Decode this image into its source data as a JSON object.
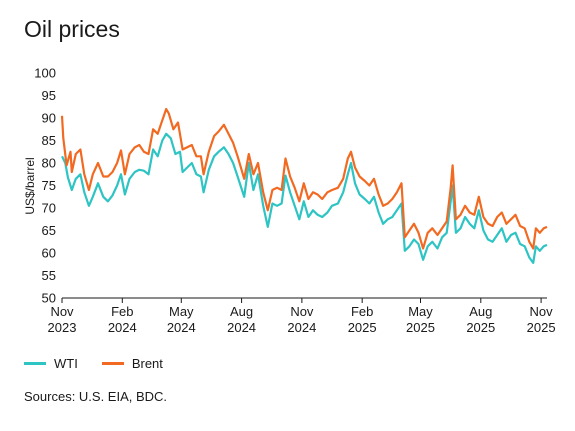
{
  "title": "Oil prices",
  "source": "Sources: U.S. EIA, BDC.",
  "chart_data": {
    "type": "line",
    "ylabel": "US$/barrel",
    "ylim": [
      50,
      100
    ],
    "yticks": [
      50,
      55,
      60,
      65,
      70,
      75,
      80,
      85,
      90,
      95,
      100
    ],
    "xlim": [
      "2023-11-01",
      "2025-11-10"
    ],
    "xticks": [
      {
        "date": "2023-11-01",
        "month": "Nov",
        "year": "2023"
      },
      {
        "date": "2024-02-01",
        "month": "Feb",
        "year": "2024"
      },
      {
        "date": "2024-05-01",
        "month": "May",
        "year": "2024"
      },
      {
        "date": "2024-08-01",
        "month": "Aug",
        "year": "2024"
      },
      {
        "date": "2024-11-01",
        "month": "Nov",
        "year": "2024"
      },
      {
        "date": "2025-02-01",
        "month": "Feb",
        "year": "2025"
      },
      {
        "date": "2025-05-01",
        "month": "May",
        "year": "2025"
      },
      {
        "date": "2025-08-01",
        "month": "Aug",
        "year": "2025"
      },
      {
        "date": "2025-11-01",
        "month": "Nov",
        "year": "2025"
      }
    ],
    "series": [
      {
        "name": "WTI",
        "color": "#2ec4c4",
        "points": [
          [
            "2023-11-01",
            81.5
          ],
          [
            "2023-11-06",
            80.0
          ],
          [
            "2023-11-10",
            76.8
          ],
          [
            "2023-11-16",
            74.0
          ],
          [
            "2023-11-22",
            76.5
          ],
          [
            "2023-11-29",
            77.5
          ],
          [
            "2023-12-05",
            73.5
          ],
          [
            "2023-12-12",
            70.5
          ],
          [
            "2023-12-18",
            72.5
          ],
          [
            "2023-12-26",
            75.5
          ],
          [
            "2024-01-03",
            72.5
          ],
          [
            "2024-01-10",
            71.5
          ],
          [
            "2024-01-17",
            72.8
          ],
          [
            "2024-01-24",
            75.0
          ],
          [
            "2024-01-30",
            77.5
          ],
          [
            "2024-02-05",
            73.0
          ],
          [
            "2024-02-12",
            76.5
          ],
          [
            "2024-02-20",
            78.0
          ],
          [
            "2024-02-27",
            78.5
          ],
          [
            "2024-03-05",
            78.3
          ],
          [
            "2024-03-12",
            77.5
          ],
          [
            "2024-03-19",
            83.0
          ],
          [
            "2024-03-26",
            81.5
          ],
          [
            "2024-04-02",
            85.0
          ],
          [
            "2024-04-08",
            86.5
          ],
          [
            "2024-04-15",
            85.5
          ],
          [
            "2024-04-22",
            82.0
          ],
          [
            "2024-04-29",
            82.5
          ],
          [
            "2024-05-03",
            78.0
          ],
          [
            "2024-05-10",
            79.0
          ],
          [
            "2024-05-17",
            80.0
          ],
          [
            "2024-05-24",
            77.5
          ],
          [
            "2024-05-31",
            77.0
          ],
          [
            "2024-06-04",
            73.5
          ],
          [
            "2024-06-12",
            78.5
          ],
          [
            "2024-06-20",
            81.5
          ],
          [
            "2024-06-27",
            82.5
          ],
          [
            "2024-07-05",
            83.5
          ],
          [
            "2024-07-12",
            82.0
          ],
          [
            "2024-07-19",
            80.0
          ],
          [
            "2024-07-26",
            77.0
          ],
          [
            "2024-08-05",
            72.5
          ],
          [
            "2024-08-12",
            80.0
          ],
          [
            "2024-08-19",
            74.0
          ],
          [
            "2024-08-26",
            77.5
          ],
          [
            "2024-09-03",
            70.5
          ],
          [
            "2024-09-10",
            65.8
          ],
          [
            "2024-09-17",
            71.0
          ],
          [
            "2024-09-24",
            70.5
          ],
          [
            "2024-10-01",
            71.0
          ],
          [
            "2024-10-07",
            77.2
          ],
          [
            "2024-10-14",
            73.5
          ],
          [
            "2024-10-21",
            70.5
          ],
          [
            "2024-10-28",
            67.5
          ],
          [
            "2024-11-04",
            71.5
          ],
          [
            "2024-11-11",
            68.0
          ],
          [
            "2024-11-18",
            69.5
          ],
          [
            "2024-11-25",
            68.5
          ],
          [
            "2024-12-02",
            68.0
          ],
          [
            "2024-12-10",
            69.0
          ],
          [
            "2024-12-17",
            70.5
          ],
          [
            "2024-12-26",
            71.0
          ],
          [
            "2025-01-03",
            73.5
          ],
          [
            "2025-01-10",
            77.5
          ],
          [
            "2025-01-15",
            80.0
          ],
          [
            "2025-01-21",
            75.5
          ],
          [
            "2025-01-28",
            73.0
          ],
          [
            "2025-02-05",
            72.0
          ],
          [
            "2025-02-12",
            71.0
          ],
          [
            "2025-02-19",
            72.5
          ],
          [
            "2025-02-26",
            69.0
          ],
          [
            "2025-03-05",
            66.5
          ],
          [
            "2025-03-12",
            67.5
          ],
          [
            "2025-03-19",
            68.0
          ],
          [
            "2025-03-26",
            69.5
          ],
          [
            "2025-04-02",
            71.0
          ],
          [
            "2025-04-07",
            60.5
          ],
          [
            "2025-04-14",
            61.5
          ],
          [
            "2025-04-21",
            63.0
          ],
          [
            "2025-04-28",
            62.0
          ],
          [
            "2025-05-05",
            58.5
          ],
          [
            "2025-05-12",
            61.5
          ],
          [
            "2025-05-19",
            62.5
          ],
          [
            "2025-05-27",
            61.0
          ],
          [
            "2025-06-03",
            63.5
          ],
          [
            "2025-06-10",
            64.5
          ],
          [
            "2025-06-16",
            71.5
          ],
          [
            "2025-06-19",
            75.0
          ],
          [
            "2025-06-24",
            64.5
          ],
          [
            "2025-07-01",
            65.5
          ],
          [
            "2025-07-08",
            68.0
          ],
          [
            "2025-07-15",
            66.5
          ],
          [
            "2025-07-22",
            65.5
          ],
          [
            "2025-07-29",
            69.5
          ],
          [
            "2025-08-05",
            65.0
          ],
          [
            "2025-08-12",
            63.0
          ],
          [
            "2025-08-19",
            62.5
          ],
          [
            "2025-08-26",
            64.0
          ],
          [
            "2025-09-02",
            65.5
          ],
          [
            "2025-09-09",
            62.5
          ],
          [
            "2025-09-16",
            64.0
          ],
          [
            "2025-09-23",
            64.5
          ],
          [
            "2025-09-30",
            62.0
          ],
          [
            "2025-10-07",
            61.5
          ],
          [
            "2025-10-14",
            59.0
          ],
          [
            "2025-10-20",
            57.8
          ],
          [
            "2025-10-24",
            61.5
          ],
          [
            "2025-10-30",
            60.5
          ],
          [
            "2025-11-05",
            61.5
          ],
          [
            "2025-11-10",
            61.8
          ]
        ]
      },
      {
        "name": "Brent",
        "color": "#f26a21",
        "points": [
          [
            "2023-11-01",
            90.5
          ],
          [
            "2023-11-03",
            85.5
          ],
          [
            "2023-11-08",
            79.5
          ],
          [
            "2023-11-14",
            82.5
          ],
          [
            "2023-11-16",
            78.0
          ],
          [
            "2023-11-22",
            82.0
          ],
          [
            "2023-11-29",
            83.0
          ],
          [
            "2023-12-05",
            77.5
          ],
          [
            "2023-12-12",
            74.0
          ],
          [
            "2023-12-18",
            77.5
          ],
          [
            "2023-12-26",
            80.0
          ],
          [
            "2024-01-03",
            77.0
          ],
          [
            "2024-01-10",
            77.0
          ],
          [
            "2024-01-17",
            78.0
          ],
          [
            "2024-01-24",
            80.0
          ],
          [
            "2024-01-30",
            82.8
          ],
          [
            "2024-02-05",
            77.5
          ],
          [
            "2024-02-12",
            82.0
          ],
          [
            "2024-02-20",
            83.5
          ],
          [
            "2024-02-27",
            84.0
          ],
          [
            "2024-03-05",
            82.5
          ],
          [
            "2024-03-12",
            82.0
          ],
          [
            "2024-03-19",
            87.5
          ],
          [
            "2024-03-26",
            86.5
          ],
          [
            "2024-04-02",
            89.5
          ],
          [
            "2024-04-08",
            92.0
          ],
          [
            "2024-04-12",
            91.0
          ],
          [
            "2024-04-19",
            87.5
          ],
          [
            "2024-04-26",
            89.0
          ],
          [
            "2024-05-03",
            83.0
          ],
          [
            "2024-05-10",
            83.5
          ],
          [
            "2024-05-17",
            84.0
          ],
          [
            "2024-05-24",
            81.5
          ],
          [
            "2024-05-31",
            81.5
          ],
          [
            "2024-06-04",
            77.5
          ],
          [
            "2024-06-12",
            82.5
          ],
          [
            "2024-06-20",
            86.0
          ],
          [
            "2024-06-27",
            87.0
          ],
          [
            "2024-07-05",
            88.5
          ],
          [
            "2024-07-12",
            86.5
          ],
          [
            "2024-07-19",
            84.5
          ],
          [
            "2024-07-26",
            81.5
          ],
          [
            "2024-08-05",
            76.5
          ],
          [
            "2024-08-12",
            82.0
          ],
          [
            "2024-08-19",
            77.5
          ],
          [
            "2024-08-26",
            80.0
          ],
          [
            "2024-09-03",
            73.5
          ],
          [
            "2024-09-10",
            69.5
          ],
          [
            "2024-09-17",
            74.0
          ],
          [
            "2024-09-24",
            74.5
          ],
          [
            "2024-10-01",
            74.0
          ],
          [
            "2024-10-07",
            81.0
          ],
          [
            "2024-10-14",
            77.0
          ],
          [
            "2024-10-21",
            74.5
          ],
          [
            "2024-10-28",
            71.5
          ],
          [
            "2024-11-04",
            75.5
          ],
          [
            "2024-11-11",
            72.0
          ],
          [
            "2024-11-18",
            73.5
          ],
          [
            "2024-11-25",
            73.0
          ],
          [
            "2024-12-02",
            72.0
          ],
          [
            "2024-12-10",
            73.5
          ],
          [
            "2024-12-17",
            74.0
          ],
          [
            "2024-12-26",
            74.5
          ],
          [
            "2025-01-03",
            76.5
          ],
          [
            "2025-01-10",
            81.0
          ],
          [
            "2025-01-15",
            82.5
          ],
          [
            "2025-01-21",
            79.0
          ],
          [
            "2025-01-28",
            77.0
          ],
          [
            "2025-02-05",
            76.0
          ],
          [
            "2025-02-12",
            75.0
          ],
          [
            "2025-02-19",
            76.5
          ],
          [
            "2025-02-26",
            73.0
          ],
          [
            "2025-03-05",
            70.5
          ],
          [
            "2025-03-12",
            71.0
          ],
          [
            "2025-03-19",
            72.0
          ],
          [
            "2025-03-26",
            73.5
          ],
          [
            "2025-04-02",
            75.5
          ],
          [
            "2025-04-07",
            63.5
          ],
          [
            "2025-04-14",
            65.0
          ],
          [
            "2025-04-21",
            66.5
          ],
          [
            "2025-04-28",
            64.5
          ],
          [
            "2025-05-05",
            61.0
          ],
          [
            "2025-05-12",
            64.5
          ],
          [
            "2025-05-19",
            65.5
          ],
          [
            "2025-05-27",
            64.0
          ],
          [
            "2025-06-03",
            65.5
          ],
          [
            "2025-06-10",
            67.0
          ],
          [
            "2025-06-16",
            74.5
          ],
          [
            "2025-06-19",
            79.5
          ],
          [
            "2025-06-24",
            67.5
          ],
          [
            "2025-07-01",
            68.5
          ],
          [
            "2025-07-08",
            70.5
          ],
          [
            "2025-07-15",
            69.0
          ],
          [
            "2025-07-22",
            68.5
          ],
          [
            "2025-07-29",
            72.5
          ],
          [
            "2025-08-05",
            68.0
          ],
          [
            "2025-08-12",
            66.5
          ],
          [
            "2025-08-19",
            66.0
          ],
          [
            "2025-08-26",
            68.0
          ],
          [
            "2025-09-02",
            69.0
          ],
          [
            "2025-09-09",
            66.5
          ],
          [
            "2025-09-16",
            67.5
          ],
          [
            "2025-09-23",
            68.5
          ],
          [
            "2025-09-30",
            66.0
          ],
          [
            "2025-10-07",
            65.5
          ],
          [
            "2025-10-14",
            62.5
          ],
          [
            "2025-10-20",
            61.0
          ],
          [
            "2025-10-24",
            65.5
          ],
          [
            "2025-10-30",
            64.5
          ],
          [
            "2025-11-05",
            65.5
          ],
          [
            "2025-11-10",
            65.8
          ]
        ]
      }
    ],
    "grid": false,
    "legend_position": "bottom-left"
  }
}
